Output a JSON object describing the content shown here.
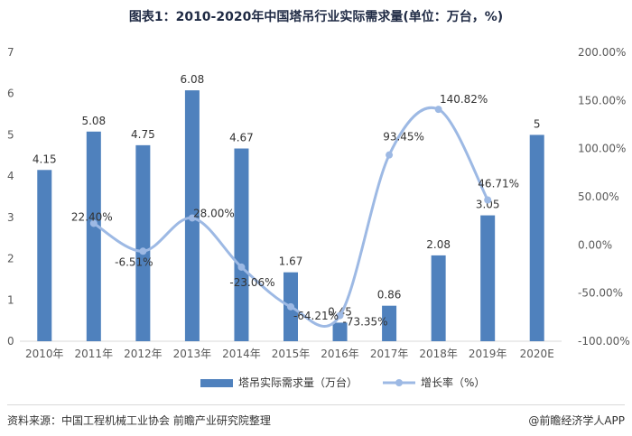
{
  "chart_data": {
    "type": "bar",
    "title": "图表1：2010-2020年中国塔吊行业实际需求量(单位：万台，%)",
    "categories": [
      "2010年",
      "2011年",
      "2012年",
      "2013年",
      "2014年",
      "2015年",
      "2016年",
      "2017年",
      "2018年",
      "2019年",
      "2020E"
    ],
    "left_axis": {
      "ylim": [
        0,
        7
      ],
      "ticks": [
        "0",
        "1",
        "2",
        "3",
        "4",
        "5",
        "6",
        "7"
      ]
    },
    "right_axis": {
      "ylim": [
        -100,
        200
      ],
      "ticks": [
        "-100.00%",
        "-50.00%",
        "0.00%",
        "50.00%",
        "100.00%",
        "150.00%",
        "200.00%"
      ]
    },
    "series": [
      {
        "name": "塔吊实际需求量（万台）",
        "type": "bar",
        "axis": "left",
        "color": "#4f81bd",
        "values": [
          4.15,
          5.08,
          4.75,
          6.08,
          4.67,
          1.67,
          0.45,
          0.86,
          2.08,
          3.05,
          5
        ],
        "labels": [
          "4.15",
          "5.08",
          "4.75",
          "6.08",
          "4.67",
          "1.67",
          "0.45",
          "0.86",
          "2.08",
          "3.05",
          "5"
        ]
      },
      {
        "name": "增长率（%）",
        "type": "line",
        "axis": "right",
        "color": "#9db9e4",
        "values": [
          null,
          22.4,
          -6.51,
          28.0,
          -23.06,
          -64.21,
          -73.35,
          93.45,
          140.82,
          46.71,
          null
        ],
        "labels": [
          "",
          "22.40%",
          "-6.51%",
          "28.00%",
          "-23.06%",
          "-64.21%",
          "-73.35%",
          "93.45%",
          "140.82%",
          "46.71%",
          ""
        ]
      }
    ]
  },
  "footer": {
    "source": "资料来源：中国工程机械工业协会 前瞻产业研究院整理",
    "brand": "@前瞻经济学人APP"
  }
}
